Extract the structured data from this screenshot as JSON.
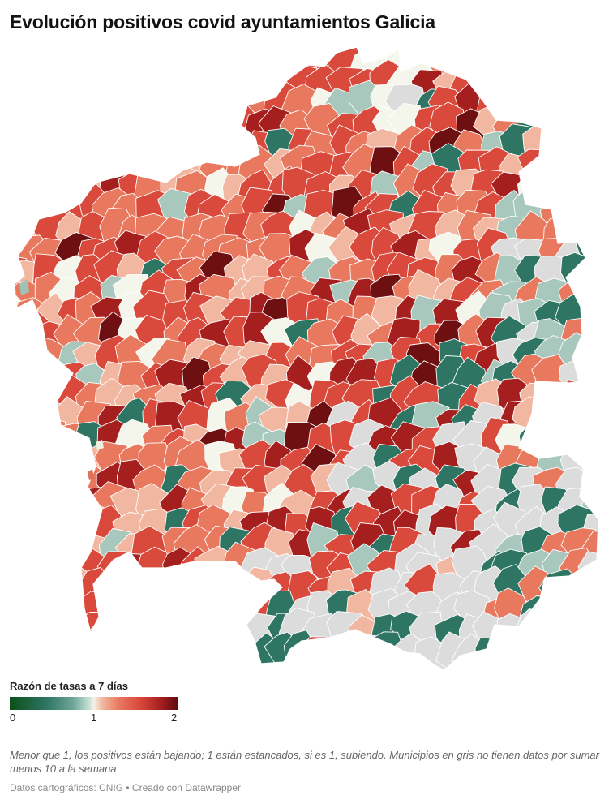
{
  "title": "Evolución positivos covid ayuntamientos Galicia",
  "legend": {
    "title": "Razón de tasas a 7 días",
    "ticks": [
      "0",
      "1",
      "2"
    ]
  },
  "note": "Menor que 1, los positivos están bajando; 1 están estancados, si es 1, subiendo. Municipios en gris no tienen datos por sumar menos 10 a la semana",
  "source": "Datos cartográficos: CNIG • Creado con Datawrapper",
  "colors": {
    "no_data": "#dcdcdc",
    "scale": [
      "#0d4f19",
      "#2e7563",
      "#a9c8bd",
      "#f4f6ec",
      "#f2b7a1",
      "#e8795f",
      "#d94a3c",
      "#a51f1f",
      "#6e0f12"
    ],
    "border": "#ffffff"
  }
}
